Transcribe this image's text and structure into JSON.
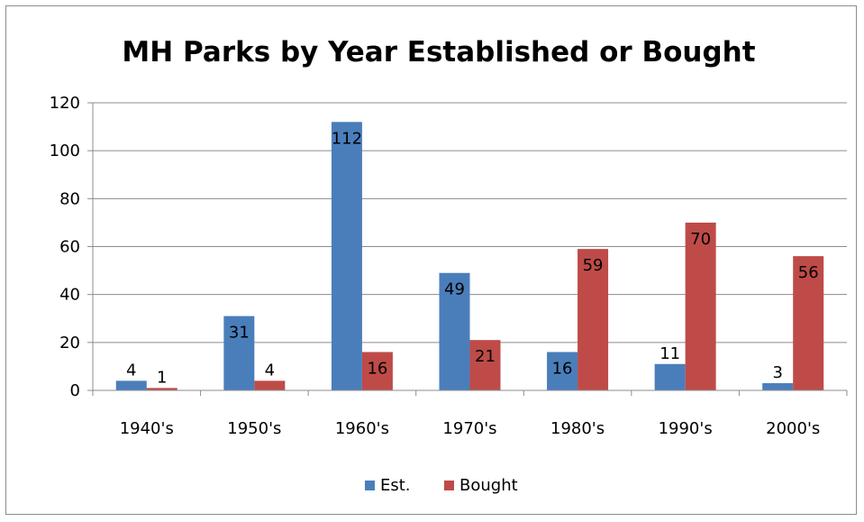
{
  "chart_data": {
    "type": "bar",
    "title": "MH Parks by Year Established or Bought",
    "categories": [
      "1940's",
      "1950's",
      "1960's",
      "1970's",
      "1980's",
      "1990's",
      "2000's"
    ],
    "series": [
      {
        "name": "Est.",
        "color": "#4a7ebb",
        "values": [
          4,
          31,
          112,
          49,
          16,
          11,
          3
        ]
      },
      {
        "name": "Bought",
        "color": "#be4b48",
        "values": [
          1,
          4,
          16,
          21,
          59,
          70,
          56
        ]
      }
    ],
    "ylim": [
      0,
      120
    ],
    "yticks": [
      0,
      20,
      40,
      60,
      80,
      100,
      120
    ],
    "grid": true,
    "legend": "bottom"
  }
}
